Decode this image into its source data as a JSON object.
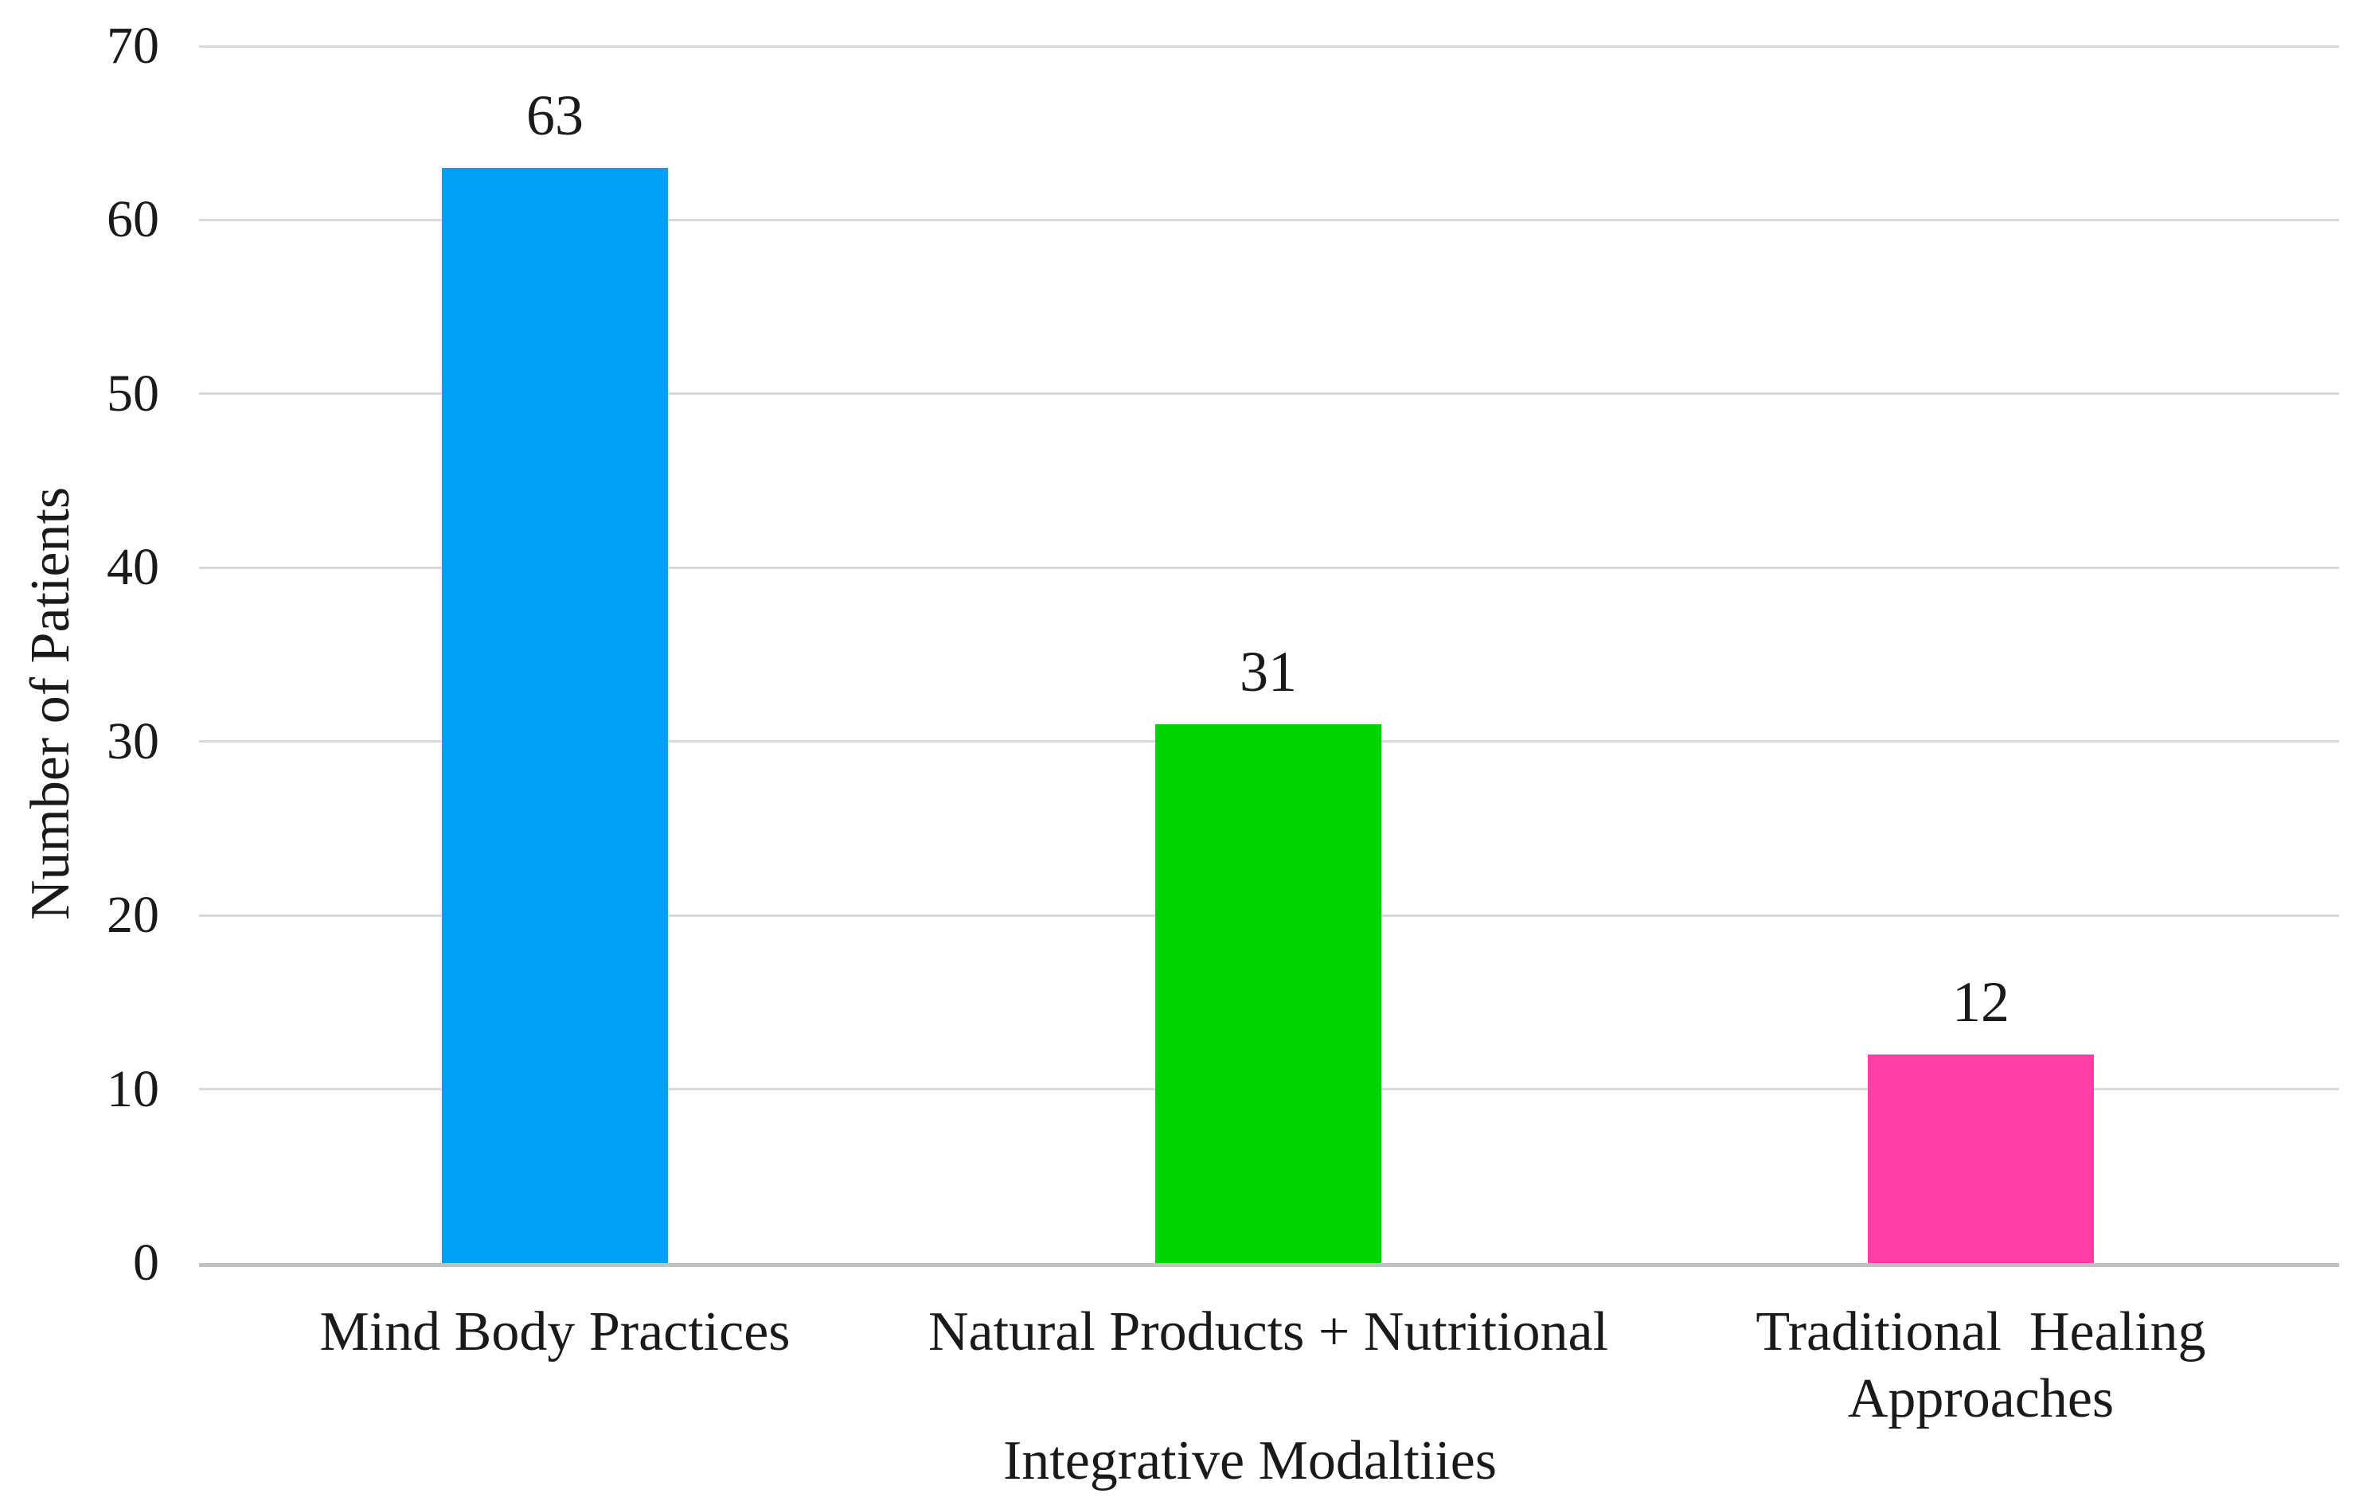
{
  "figure": {
    "background": "#FFFFFF"
  },
  "chart_data": {
    "type": "bar",
    "title": "",
    "xlabel": "Integrative Modaltiies",
    "ylabel": "Number of Patients",
    "categories": [
      "Mind Body Practices",
      "Natural Products + Nutritional",
      "Traditional  Healing\nApproaches"
    ],
    "values": [
      63,
      31,
      12
    ],
    "data_labels": [
      "63",
      "31",
      "12"
    ],
    "bar_colors": [
      "#00A1F5",
      "#00D400",
      "#FF3EA5"
    ],
    "ylim": [
      0,
      70
    ],
    "yticks": [
      0,
      10,
      20,
      30,
      40,
      50,
      60,
      70
    ],
    "grid": true,
    "legend": "none",
    "gridline_color": "#D9D9D9",
    "axis_line_color": "#C1C1C1",
    "text_color": "#1A1A1A"
  }
}
